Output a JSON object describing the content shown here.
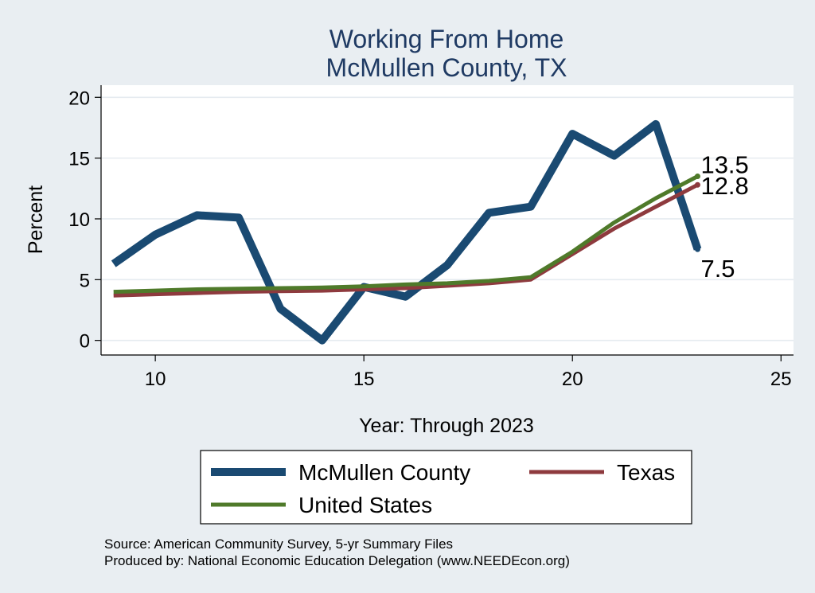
{
  "chart_data": {
    "type": "line",
    "title": "Working From Home",
    "subtitle": "McMullen County, TX",
    "xlabel": "Year: Through 2023",
    "ylabel": "Percent",
    "xlim": [
      8.7,
      25.3
    ],
    "ylim": [
      -1.2,
      21
    ],
    "xticks": [
      10,
      15,
      20,
      25
    ],
    "yticks": [
      0,
      5,
      10,
      15,
      20
    ],
    "grid": true,
    "legend_position": "bottom",
    "x": [
      9,
      10,
      11,
      12,
      13,
      14,
      15,
      16,
      17,
      18,
      19,
      20,
      21,
      22,
      23
    ],
    "series": [
      {
        "name": "McMullen County",
        "color": "#1a4a72",
        "values": [
          6.3,
          8.7,
          10.3,
          10.1,
          2.6,
          0.0,
          4.4,
          3.6,
          6.2,
          10.5,
          11.0,
          17.0,
          15.2,
          17.8,
          7.5
        ],
        "end_label": "7.5"
      },
      {
        "name": "Texas",
        "color": "#8e3a3e",
        "values": [
          3.7,
          3.8,
          3.9,
          4.0,
          4.05,
          4.1,
          4.2,
          4.3,
          4.5,
          4.7,
          5.0,
          7.1,
          9.2,
          11.0,
          12.8
        ],
        "end_label": "12.8"
      },
      {
        "name": "United States",
        "color": "#4f7a2a",
        "values": [
          4.0,
          4.1,
          4.2,
          4.25,
          4.3,
          4.35,
          4.45,
          4.6,
          4.7,
          4.9,
          5.2,
          7.3,
          9.7,
          11.7,
          13.5
        ],
        "end_label": "13.5"
      }
    ],
    "source_lines": [
      "Source: American Community Survey, 5-yr Summary Files",
      "Produced by: National Economic Education Delegation (www.NEEDEcon.org)"
    ]
  }
}
